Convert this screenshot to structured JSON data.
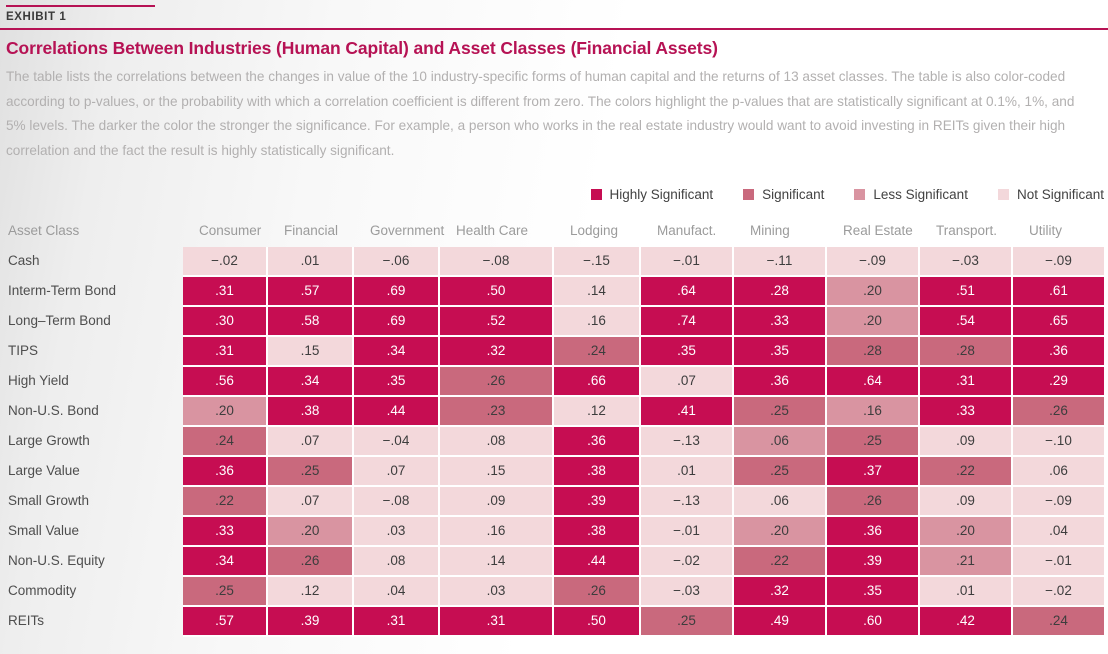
{
  "exhibit": {
    "tag": "EXHIBIT 1",
    "title": "Correlations Between Industries (Human Capital) and Asset Classes (Financial Assets)",
    "description": "The table lists the correlations between the changes in value of the 10 industry-specific forms of human capital and the returns of 13 asset classes. The table is also color-coded according to p-values, or the probability with which a correlation coefficient is different from zero. The colors highlight the p-values that are statistically significant at 0.1%, 1%, and 5% levels. The darker the color the stronger the significance. For example, a person who works in the real estate industry would want to avoid investing in REITs given their high correlation and the fact the result is highly statistically significant.",
    "row_header": "Asset Class"
  },
  "colors": {
    "accent": "#b61254",
    "H": "#c60d52",
    "S": "#c9697d",
    "L": "#d994a1",
    "N": "#f3d8db",
    "dark_cell_text": "#ffffff",
    "light_cell_text": "#3d3d3d"
  },
  "legend": [
    {
      "label": "Highly Significant",
      "level": "H"
    },
    {
      "label": "Significant",
      "level": "S"
    },
    {
      "label": "Less Significant",
      "level": "L"
    },
    {
      "label": "Not Significant",
      "level": "N"
    }
  ],
  "chart_data": {
    "type": "heatmap",
    "title": "Correlations Between Industries (Human Capital) and Asset Classes (Financial Assets)",
    "row_header": "Asset Class",
    "columns": [
      "Consumer",
      "Financial",
      "Government",
      "Health Care",
      "Lodging",
      "Manufact.",
      "Mining",
      "Real Estate",
      "Transport.",
      "Utility"
    ],
    "significance_levels": {
      "H": "Highly Significant",
      "S": "Significant",
      "L": "Less Significant",
      "N": "Not Significant"
    },
    "rows": [
      {
        "label": "Cash",
        "values": [
          "−.02",
          ".01",
          "−.06",
          "−.08",
          "−.15",
          "−.01",
          "−.11",
          "−.09",
          "−.03",
          "−.09"
        ],
        "sig": [
          "N",
          "N",
          "N",
          "N",
          "N",
          "N",
          "N",
          "N",
          "N",
          "N"
        ]
      },
      {
        "label": "Interm-Term Bond",
        "values": [
          ".31",
          ".57",
          ".69",
          ".50",
          ".14",
          ".64",
          ".28",
          ".20",
          ".51",
          ".61"
        ],
        "sig": [
          "H",
          "H",
          "H",
          "H",
          "N",
          "H",
          "H",
          "L",
          "H",
          "H"
        ]
      },
      {
        "label": "Long–Term Bond",
        "values": [
          ".30",
          ".58",
          ".69",
          ".52",
          ".16",
          ".74",
          ".33",
          ".20",
          ".54",
          ".65"
        ],
        "sig": [
          "H",
          "H",
          "H",
          "H",
          "N",
          "H",
          "H",
          "L",
          "H",
          "H"
        ]
      },
      {
        "label": "TIPS",
        "values": [
          ".31",
          ".15",
          ".34",
          ".32",
          ".24",
          ".35",
          ".35",
          ".28",
          ".28",
          ".36"
        ],
        "sig": [
          "H",
          "N",
          "H",
          "H",
          "S",
          "H",
          "H",
          "S",
          "S",
          "H"
        ]
      },
      {
        "label": "High Yield",
        "values": [
          ".56",
          ".34",
          ".35",
          ".26",
          ".66",
          ".07",
          ".36",
          ".64",
          ".31",
          ".29"
        ],
        "sig": [
          "H",
          "H",
          "H",
          "S",
          "H",
          "N",
          "H",
          "H",
          "H",
          "H"
        ]
      },
      {
        "label": "Non-U.S. Bond",
        "values": [
          ".20",
          ".38",
          ".44",
          ".23",
          ".12",
          ".41",
          ".25",
          ".16",
          ".33",
          ".26"
        ],
        "sig": [
          "L",
          "H",
          "H",
          "S",
          "N",
          "H",
          "S",
          "L",
          "H",
          "S"
        ]
      },
      {
        "label": "Large Growth",
        "values": [
          ".24",
          ".07",
          "−.04",
          ".08",
          ".36",
          "−.13",
          ".06",
          ".25",
          ".09",
          "−.10"
        ],
        "sig": [
          "S",
          "N",
          "N",
          "N",
          "H",
          "N",
          "L",
          "S",
          "N",
          "N"
        ]
      },
      {
        "label": "Large Value",
        "values": [
          ".36",
          ".25",
          ".07",
          ".15",
          ".38",
          ".01",
          ".25",
          ".37",
          ".22",
          ".06"
        ],
        "sig": [
          "H",
          "S",
          "N",
          "N",
          "H",
          "N",
          "S",
          "H",
          "S",
          "N"
        ]
      },
      {
        "label": "Small Growth",
        "values": [
          ".22",
          ".07",
          "−.08",
          ".09",
          ".39",
          "−.13",
          ".06",
          ".26",
          ".09",
          "−.09"
        ],
        "sig": [
          "S",
          "N",
          "N",
          "N",
          "H",
          "N",
          "N",
          "S",
          "N",
          "N"
        ]
      },
      {
        "label": "Small Value",
        "values": [
          ".33",
          ".20",
          ".03",
          ".16",
          ".38",
          "−.01",
          ".20",
          ".36",
          ".20",
          ".04"
        ],
        "sig": [
          "H",
          "L",
          "N",
          "N",
          "H",
          "N",
          "L",
          "H",
          "L",
          "N"
        ]
      },
      {
        "label": "Non-U.S. Equity",
        "values": [
          ".34",
          ".26",
          ".08",
          ".14",
          ".44",
          "−.02",
          ".22",
          ".39",
          ".21",
          "−.01"
        ],
        "sig": [
          "H",
          "S",
          "N",
          "N",
          "H",
          "N",
          "S",
          "H",
          "L",
          "N"
        ]
      },
      {
        "label": "Commodity",
        "values": [
          ".25",
          ".12",
          ".04",
          ".03",
          ".26",
          "−.03",
          ".32",
          ".35",
          ".01",
          "−.02"
        ],
        "sig": [
          "S",
          "N",
          "N",
          "N",
          "S",
          "N",
          "H",
          "H",
          "N",
          "N"
        ]
      },
      {
        "label": "REITs",
        "values": [
          ".57",
          ".39",
          ".31",
          ".31",
          ".50",
          ".25",
          ".49",
          ".60",
          ".42",
          ".24"
        ],
        "sig": [
          "H",
          "H",
          "H",
          "H",
          "H",
          "S",
          "H",
          "H",
          "H",
          "S"
        ]
      }
    ]
  }
}
